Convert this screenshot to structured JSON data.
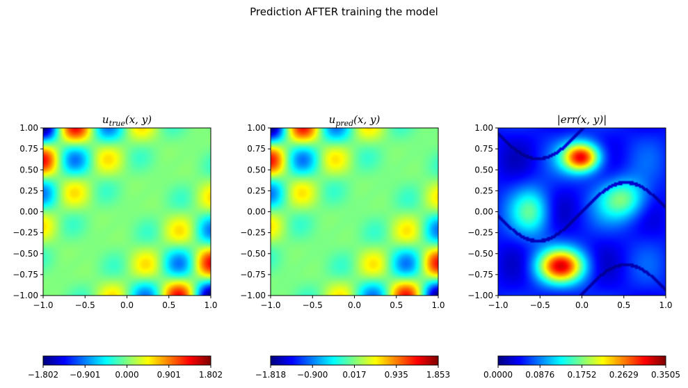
{
  "suptitle": "Prediction AFTER training the model",
  "chart_data": [
    {
      "type": "heatmap",
      "title": "u_true(x, y)",
      "colormap": "jet",
      "xlim": [
        -1.0,
        1.0
      ],
      "ylim": [
        -1.0,
        1.0
      ],
      "xticks": [
        "−1.0",
        "−0.5",
        "0.0",
        "0.5",
        "1.0"
      ],
      "yticks": [
        "1.00",
        "0.75",
        "0.50",
        "0.25",
        "0.00",
        "−0.25",
        "−0.50",
        "−0.75",
        "−1.00"
      ],
      "field": "u_true",
      "colorbar": {
        "min": -1.802,
        "max": 1.802,
        "ticks": [
          "−1.802",
          "−0.901",
          "0.000",
          "0.901",
          "1.802"
        ]
      }
    },
    {
      "type": "heatmap",
      "title": "u_pred(x, y)",
      "colormap": "jet",
      "xlim": [
        -1.0,
        1.0
      ],
      "ylim": [
        -1.0,
        1.0
      ],
      "xticks": [
        "−1.0",
        "−0.5",
        "0.0",
        "0.5",
        "1.0"
      ],
      "yticks": [
        "1.00",
        "0.75",
        "0.50",
        "0.25",
        "0.00",
        "−0.25",
        "−0.50",
        "−0.75",
        "−1.00"
      ],
      "field": "u_pred",
      "colorbar": {
        "min": -1.818,
        "max": 1.853,
        "ticks": [
          "−1.818",
          "−0.900",
          "0.017",
          "0.935",
          "1.853"
        ]
      }
    },
    {
      "type": "heatmap",
      "title": "|err(x, y)|",
      "colormap": "jet",
      "xlim": [
        -1.0,
        1.0
      ],
      "ylim": [
        -1.0,
        1.0
      ],
      "xticks": [
        "−1.0",
        "−0.5",
        "0.0",
        "0.5",
        "1.0"
      ],
      "yticks": [
        "1.00",
        "0.75",
        "0.50",
        "0.25",
        "0.00",
        "−0.25",
        "−0.50",
        "−0.75",
        "−1.00"
      ],
      "field": "err",
      "colorbar": {
        "min": 0.0,
        "max": 0.3505,
        "ticks": [
          "0.0000",
          "0.0876",
          "0.1752",
          "0.2629",
          "0.3505"
        ]
      }
    }
  ]
}
